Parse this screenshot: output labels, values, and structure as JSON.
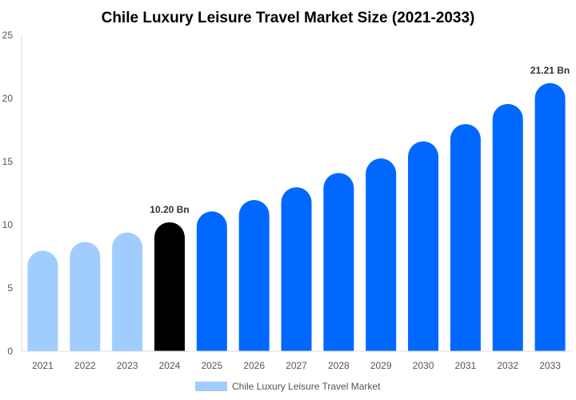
{
  "chart_data": {
    "type": "bar",
    "title": "Chile Luxury Leisure Travel Market Size (2021-2033)",
    "xlabel": "",
    "ylabel": "",
    "ylim": [
      0,
      25
    ],
    "yticks": [
      0,
      5,
      10,
      15,
      20,
      25
    ],
    "grid": false,
    "legend_position": "bottom",
    "categories": [
      "2021",
      "2022",
      "2023",
      "2024",
      "2025",
      "2026",
      "2027",
      "2028",
      "2029",
      "2030",
      "2031",
      "2032",
      "2033"
    ],
    "series": [
      {
        "name": "Chile Luxury Leisure Travel Market",
        "values": [
          7.95,
          8.65,
          9.39,
          10.2,
          11.06,
          11.96,
          12.97,
          14.1,
          15.25,
          16.6,
          17.97,
          19.56,
          21.21
        ]
      }
    ],
    "annotations": [
      {
        "category": "2024",
        "text": "10.20 Bn"
      },
      {
        "category": "2033",
        "text": "21.21 Bn"
      }
    ],
    "colors": {
      "historical": "#a0cdfd",
      "current": "#000000",
      "forecast": "#0068ff",
      "axis": "#dddddd"
    }
  }
}
